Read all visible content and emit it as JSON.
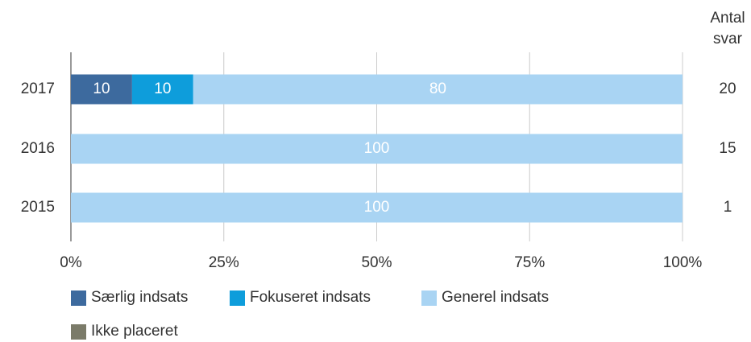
{
  "chart_data": {
    "type": "stacked_barh",
    "categories": [
      "2017",
      "2016",
      "2015"
    ],
    "series": [
      {
        "name": "Særlig indsats",
        "color": "#3d6a9e",
        "values": [
          10,
          0,
          0
        ]
      },
      {
        "name": "Fokuseret indsats",
        "color": "#0e9ddb",
        "values": [
          10,
          0,
          0
        ]
      },
      {
        "name": "Generel indsats",
        "color": "#a9d4f3",
        "values": [
          80,
          100,
          100
        ]
      },
      {
        "name": "Ikke placeret",
        "color": "#7b7b69",
        "values": [
          0,
          0,
          0
        ]
      }
    ],
    "xlim": [
      0,
      100
    ],
    "xticks": [
      {
        "value": 0,
        "label": "0%"
      },
      {
        "value": 25,
        "label": "25%"
      },
      {
        "value": 50,
        "label": "50%"
      },
      {
        "value": 75,
        "label": "75%"
      },
      {
        "value": 100,
        "label": "100%"
      }
    ],
    "grid": true,
    "legend": "bottom",
    "side_column": {
      "header": "Antal svar",
      "values": [
        20,
        15,
        1
      ]
    }
  }
}
